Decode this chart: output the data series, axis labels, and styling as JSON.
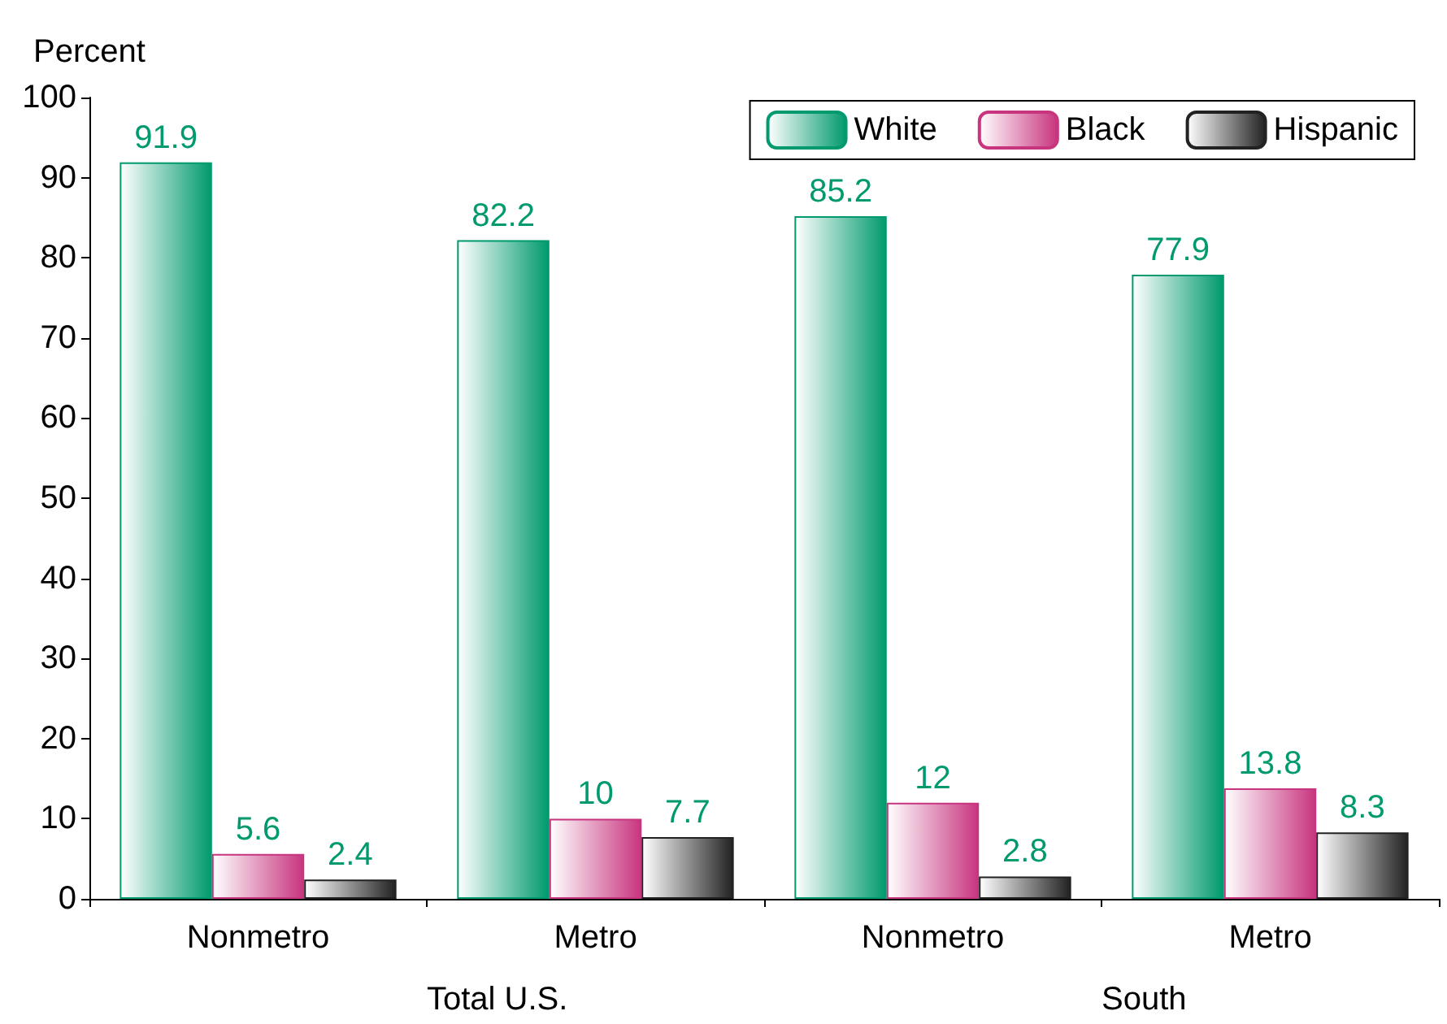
{
  "chart_data": {
    "type": "bar",
    "ylabel": "Percent",
    "categories": [
      "Nonmetro",
      "Metro",
      "Nonmetro",
      "Metro"
    ],
    "series": [
      {
        "name": "White",
        "color": "#009a6e",
        "values": [
          91.9,
          82.2,
          85.2,
          77.9
        ]
      },
      {
        "name": "Black",
        "color": "#c8357f",
        "values": [
          5.6,
          10,
          12,
          13.8
        ]
      },
      {
        "name": "Hispanic",
        "color": "#222222",
        "values": [
          2.4,
          7.7,
          2.8,
          8.3
        ]
      }
    ],
    "ylim": [
      0,
      100
    ],
    "yticks": [
      0,
      10,
      20,
      30,
      40,
      50,
      60,
      70,
      80,
      90,
      100
    ],
    "grid": false,
    "legend": "top right",
    "data_labels": true,
    "annotations": [
      "Total U.S.",
      "South"
    ]
  }
}
